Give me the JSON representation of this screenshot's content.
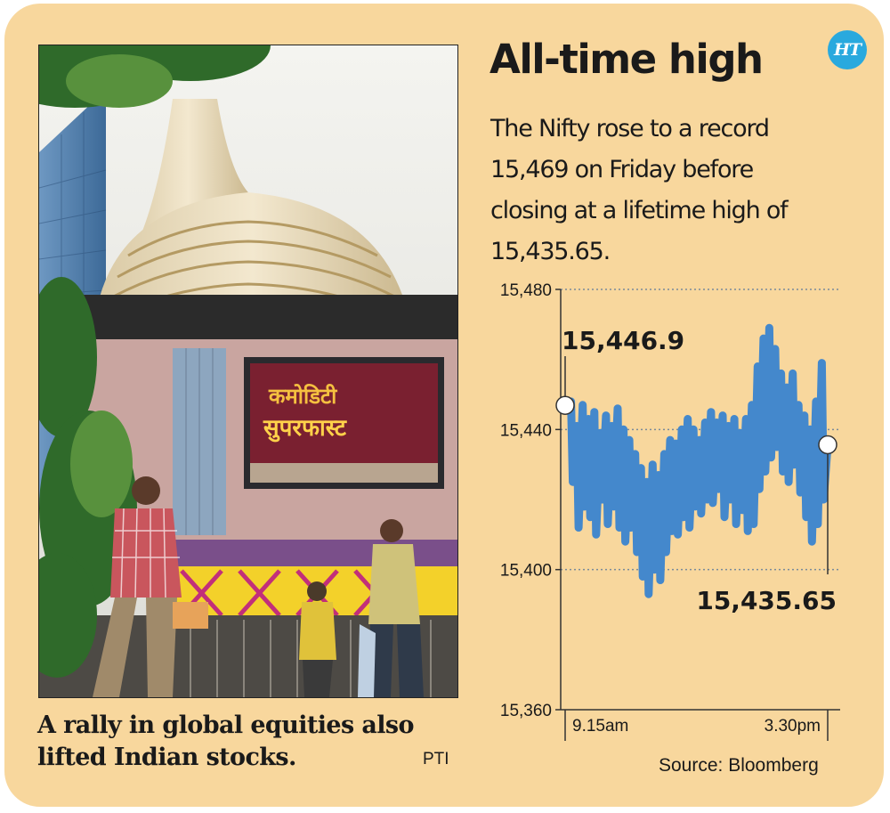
{
  "branding": {
    "logo_text": "HT"
  },
  "headline": "All-time high",
  "subtext": "The Nifty rose to a record 15,469 on Friday before closing at a lifetime high of 15,435.65.",
  "photo": {
    "caption": "A rally in global equities also lifted Indian stocks.",
    "credit": "PTI",
    "screen_text_line1": "कमोडिटी",
    "screen_text_line2": "सुपरफास्ट"
  },
  "source": "Source: Bloomberg",
  "colors": {
    "background": "#f8d79d",
    "series": "#4488cc",
    "logo": "#29a9de"
  },
  "chart_data": {
    "type": "area",
    "title": "",
    "xlabel": "",
    "ylabel": "",
    "ylim": [
      15360,
      15480
    ],
    "y_ticks": [
      "15,480",
      "15,440",
      "15,400",
      "15,360"
    ],
    "y_tick_values": [
      15480,
      15440,
      15400,
      15360
    ],
    "x_ticks": [
      "9.15am",
      "3.30pm"
    ],
    "grid": true,
    "annotations": [
      {
        "label": "15,446.9",
        "value": 15446.9,
        "at": "open"
      },
      {
        "label": "15,435.65",
        "value": 15435.65,
        "at": "close"
      }
    ],
    "series": [
      {
        "low": [
          15446.9,
          15425,
          15412,
          15418,
          15415,
          15410,
          15420,
          15413,
          15418,
          15412,
          15408,
          15412,
          15405,
          15398,
          15393,
          15400,
          15397,
          15405,
          15411,
          15410,
          15415,
          15412,
          15418,
          15416,
          15420,
          15419,
          15423,
          15415,
          15420,
          15413,
          15417,
          15411,
          15413,
          15423,
          15428,
          15432,
          15435,
          15428,
          15425,
          15430,
          15422,
          15415,
          15408,
          15413,
          15420,
          15435.65
        ],
        "high": [
          15446.9,
          15448,
          15441,
          15447,
          15443,
          15445,
          15439,
          15444,
          15441,
          15446,
          15440,
          15437,
          15433,
          15429,
          15425,
          15430,
          15427,
          15433,
          15437,
          15436,
          15440,
          15443,
          15440,
          15437,
          15442,
          15445,
          15442,
          15444,
          15441,
          15443,
          15439,
          15443,
          15447,
          15458,
          15466,
          15469,
          15463,
          15456,
          15452,
          15456,
          15447,
          15444,
          15440,
          15448,
          15459,
          15435.65
        ]
      }
    ]
  }
}
